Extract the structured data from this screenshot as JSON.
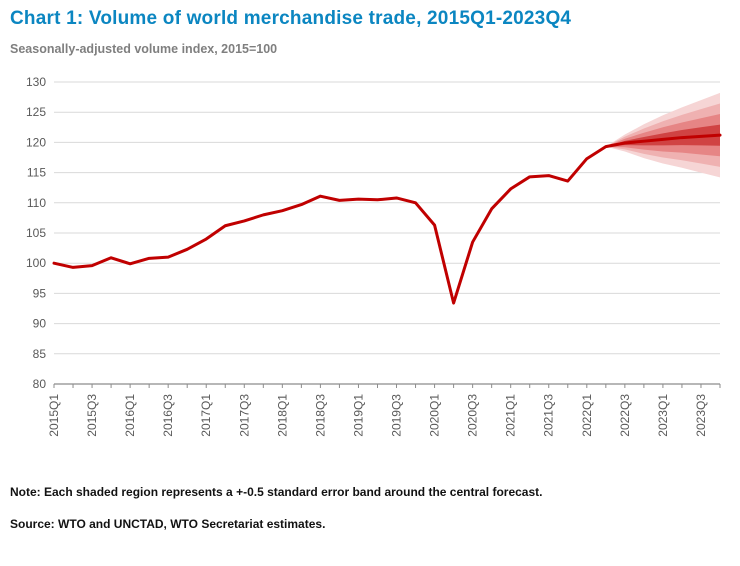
{
  "chart_data": {
    "type": "line",
    "title": "Chart 1: Volume of world merchandise trade, 2015Q1-2023Q4",
    "subtitle": "Seasonally-adjusted volume index, 2015=100",
    "ylabel": "",
    "xlabel": "",
    "ylim": [
      80,
      130
    ],
    "ytick_step": 5,
    "x_label_every": 2,
    "grid": true,
    "legend": "none",
    "quarters": [
      "2015Q1",
      "2015Q2",
      "2015Q3",
      "2015Q4",
      "2016Q1",
      "2016Q2",
      "2016Q3",
      "2016Q4",
      "2017Q1",
      "2017Q2",
      "2017Q3",
      "2017Q4",
      "2018Q1",
      "2018Q2",
      "2018Q3",
      "2018Q4",
      "2019Q1",
      "2019Q2",
      "2019Q3",
      "2019Q4",
      "2020Q1",
      "2020Q2",
      "2020Q3",
      "2020Q4",
      "2021Q1",
      "2021Q2",
      "2021Q3",
      "2021Q4",
      "2022Q1",
      "2022Q2",
      "2022Q3",
      "2022Q4",
      "2023Q1",
      "2023Q2",
      "2023Q3",
      "2023Q4"
    ],
    "values": [
      100.0,
      99.3,
      99.6,
      100.9,
      99.9,
      100.8,
      101.0,
      102.3,
      104.0,
      106.2,
      107.0,
      108.0,
      108.7,
      109.7,
      111.1,
      110.4,
      110.6,
      110.5,
      110.8,
      110.0,
      106.3,
      93.4,
      103.5,
      109.0,
      112.3,
      114.3,
      114.5,
      113.6,
      117.3,
      119.3,
      119.9,
      120.2,
      120.5,
      120.8,
      121.0,
      121.2
    ],
    "forecast_start_index": 29,
    "forecast_se": [
      0,
      0.7,
      1.4,
      2.0,
      2.5,
      3.0,
      3.5
    ],
    "bands": [
      {
        "multiplier": 2.0,
        "fill": "#f6d5d5"
      },
      {
        "multiplier": 1.5,
        "fill": "#efb1b1"
      },
      {
        "multiplier": 1.0,
        "fill": "#e68585"
      },
      {
        "multiplier": 0.5,
        "fill": "#d04343"
      }
    ],
    "line_color": "#c00000",
    "line_width": 3,
    "grid_color": "#d9d9d9",
    "axis_color": "#8c8c8c",
    "tick_label_color": "#595959"
  },
  "footer": {
    "note": "Note: Each shaded region represents a +-0.5 standard error band around the central forecast.",
    "source": "Source: WTO and UNCTAD, WTO Secretariat estimates."
  }
}
